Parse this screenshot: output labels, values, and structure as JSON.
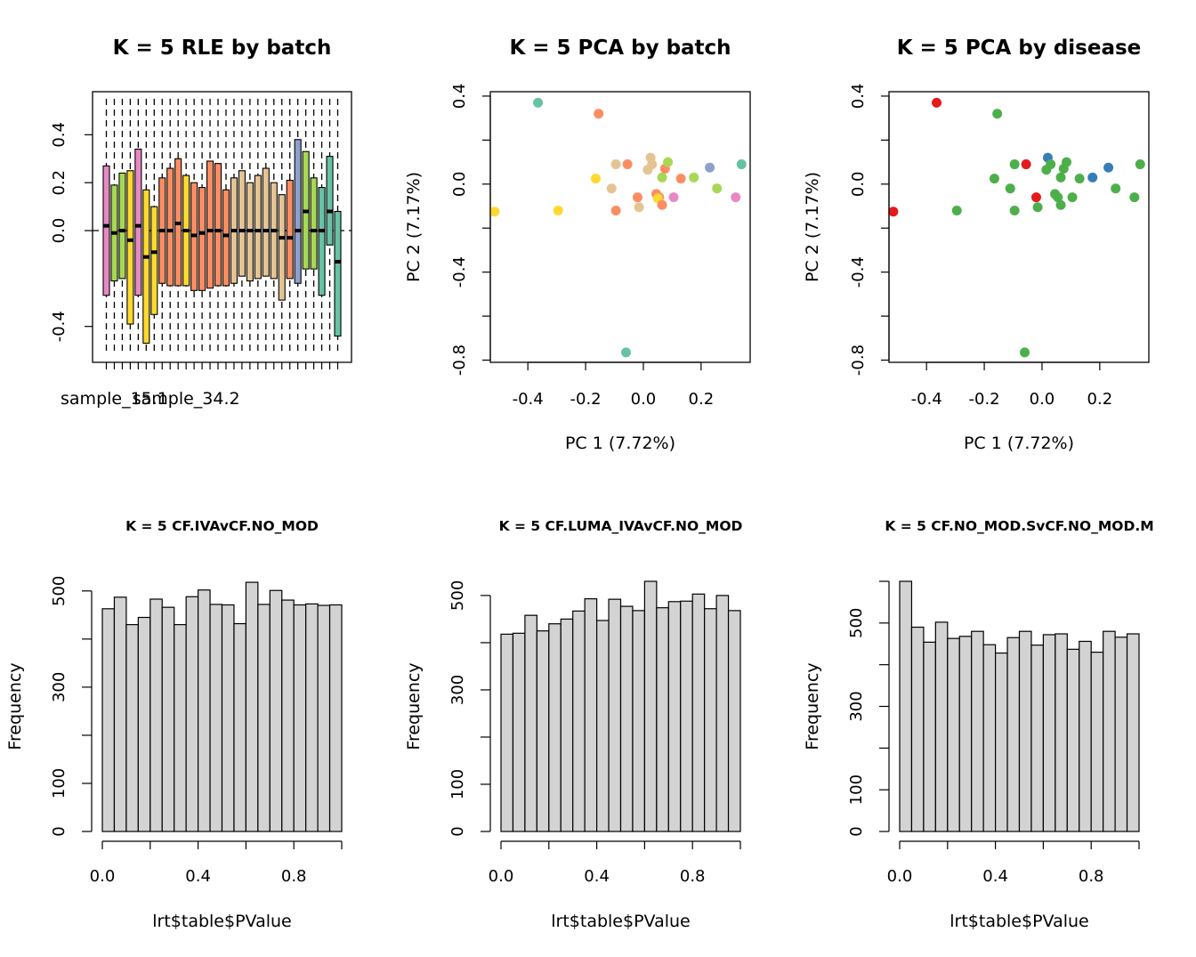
{
  "chart_data": [
    {
      "type": "boxplot",
      "title": "K = 5 RLE by batch",
      "xlabel": "",
      "ylabel": "",
      "ylim": [
        -0.52,
        0.55
      ],
      "yticks": [
        -0.4,
        0.0,
        0.2,
        0.4
      ],
      "xtick_labels": [
        {
          "index": 1,
          "label": "sample_15.1"
        },
        {
          "index": 10,
          "label": "sample_34.2"
        }
      ],
      "reference_line": 0,
      "boxes": [
        {
          "q1": -0.27,
          "median": 0.02,
          "q3": 0.27,
          "wmin": -0.52,
          "wmax": 0.55,
          "color": "#e78ac3"
        },
        {
          "q1": -0.21,
          "median": -0.01,
          "q3": 0.19,
          "wmin": -0.52,
          "wmax": 0.55,
          "color": "#a6d854"
        },
        {
          "q1": -0.2,
          "median": 0.0,
          "q3": 0.24,
          "wmin": -0.52,
          "wmax": 0.55,
          "color": "#a6d854"
        },
        {
          "q1": -0.39,
          "median": -0.04,
          "q3": 0.25,
          "wmin": -0.52,
          "wmax": 0.55,
          "color": "#ffd92f"
        },
        {
          "q1": -0.27,
          "median": 0.02,
          "q3": 0.34,
          "wmin": -0.52,
          "wmax": 0.55,
          "color": "#e78ac3"
        },
        {
          "q1": -0.47,
          "median": -0.11,
          "q3": 0.17,
          "wmin": -0.52,
          "wmax": 0.55,
          "color": "#ffd92f"
        },
        {
          "q1": -0.35,
          "median": -0.09,
          "q3": 0.1,
          "wmin": -0.52,
          "wmax": 0.55,
          "color": "#ffd92f"
        },
        {
          "q1": -0.22,
          "median": 0.0,
          "q3": 0.22,
          "wmin": -0.52,
          "wmax": 0.55,
          "color": "#fc8d62"
        },
        {
          "q1": -0.23,
          "median": 0.0,
          "q3": 0.26,
          "wmin": -0.52,
          "wmax": 0.55,
          "color": "#fc8d62"
        },
        {
          "q1": -0.23,
          "median": 0.03,
          "q3": 0.3,
          "wmin": -0.52,
          "wmax": 0.55,
          "color": "#fc8d62"
        },
        {
          "q1": -0.23,
          "median": 0.0,
          "q3": 0.23,
          "wmin": -0.52,
          "wmax": 0.55,
          "color": "#ffd92f"
        },
        {
          "q1": -0.25,
          "median": -0.02,
          "q3": 0.2,
          "wmin": -0.52,
          "wmax": 0.55,
          "color": "#fc8d62"
        },
        {
          "q1": -0.25,
          "median": -0.01,
          "q3": 0.18,
          "wmin": -0.52,
          "wmax": 0.55,
          "color": "#fc8d62"
        },
        {
          "q1": -0.24,
          "median": 0.0,
          "q3": 0.29,
          "wmin": -0.52,
          "wmax": 0.55,
          "color": "#fc8d62"
        },
        {
          "q1": -0.23,
          "median": 0.0,
          "q3": 0.28,
          "wmin": -0.52,
          "wmax": 0.55,
          "color": "#fc8d62"
        },
        {
          "q1": -0.23,
          "median": -0.02,
          "q3": 0.17,
          "wmin": -0.52,
          "wmax": 0.55,
          "color": "#fc8d62"
        },
        {
          "q1": -0.22,
          "median": 0.0,
          "q3": 0.22,
          "wmin": -0.52,
          "wmax": 0.55,
          "color": "#e5c494"
        },
        {
          "q1": -0.19,
          "median": 0.0,
          "q3": 0.25,
          "wmin": -0.52,
          "wmax": 0.55,
          "color": "#e5c494"
        },
        {
          "q1": -0.21,
          "median": 0.0,
          "q3": 0.2,
          "wmin": -0.52,
          "wmax": 0.55,
          "color": "#e5c494"
        },
        {
          "q1": -0.2,
          "median": 0.0,
          "q3": 0.23,
          "wmin": -0.52,
          "wmax": 0.55,
          "color": "#e5c494"
        },
        {
          "q1": -0.19,
          "median": 0.0,
          "q3": 0.26,
          "wmin": -0.52,
          "wmax": 0.55,
          "color": "#e5c494"
        },
        {
          "q1": -0.2,
          "median": 0.0,
          "q3": 0.2,
          "wmin": -0.52,
          "wmax": 0.55,
          "color": "#e5c494"
        },
        {
          "q1": -0.29,
          "median": -0.03,
          "q3": 0.15,
          "wmin": -0.52,
          "wmax": 0.55,
          "color": "#e5c494"
        },
        {
          "q1": -0.2,
          "median": -0.03,
          "q3": 0.21,
          "wmin": -0.52,
          "wmax": 0.55,
          "color": "#fc8d62"
        },
        {
          "q1": -0.22,
          "median": 0.0,
          "q3": 0.38,
          "wmin": -0.52,
          "wmax": 0.55,
          "color": "#8da0cb"
        },
        {
          "q1": -0.16,
          "median": 0.08,
          "q3": 0.33,
          "wmin": -0.52,
          "wmax": 0.55,
          "color": "#a6d854"
        },
        {
          "q1": -0.16,
          "median": 0.0,
          "q3": 0.22,
          "wmin": -0.52,
          "wmax": 0.55,
          "color": "#a6d854"
        },
        {
          "q1": -0.27,
          "median": 0.0,
          "q3": 0.18,
          "wmin": -0.52,
          "wmax": 0.55,
          "color": "#66c2a5"
        },
        {
          "q1": -0.06,
          "median": 0.08,
          "q3": 0.31,
          "wmin": -0.52,
          "wmax": 0.55,
          "color": "#66c2a5"
        },
        {
          "q1": -0.44,
          "median": -0.13,
          "q3": 0.08,
          "wmin": -0.52,
          "wmax": 0.55,
          "color": "#66c2a5"
        }
      ]
    },
    {
      "type": "scatter",
      "title": "K = 5 PCA by batch",
      "xlabel": "PC 1 (7.72%)",
      "ylabel": "PC 2 (7.17%)",
      "xlim": [
        -0.53,
        0.37
      ],
      "ylim": [
        -0.81,
        0.42
      ],
      "xticks": [
        -0.4,
        -0.2,
        0.0,
        0.2
      ],
      "yticks": [
        -0.8,
        -0.4,
        0.0,
        0.4
      ],
      "points": [
        {
          "x": -0.365,
          "y": 0.37,
          "color": "#66c2a5"
        },
        {
          "x": -0.155,
          "y": 0.32,
          "color": "#fc8d62"
        },
        {
          "x": -0.165,
          "y": 0.025,
          "color": "#ffd92f"
        },
        {
          "x": -0.515,
          "y": -0.125,
          "color": "#ffd92f"
        },
        {
          "x": -0.295,
          "y": -0.12,
          "color": "#ffd92f"
        },
        {
          "x": -0.095,
          "y": 0.09,
          "color": "#e5c494"
        },
        {
          "x": -0.055,
          "y": 0.09,
          "color": "#fc8d62"
        },
        {
          "x": -0.11,
          "y": -0.02,
          "color": "#e5c494"
        },
        {
          "x": -0.095,
          "y": -0.12,
          "color": "#fc8d62"
        },
        {
          "x": -0.02,
          "y": -0.06,
          "color": "#fc8d62"
        },
        {
          "x": -0.015,
          "y": -0.105,
          "color": "#e5c494"
        },
        {
          "x": 0.015,
          "y": 0.065,
          "color": "#e5c494"
        },
        {
          "x": 0.025,
          "y": 0.12,
          "color": "#e5c494"
        },
        {
          "x": 0.03,
          "y": 0.09,
          "color": "#e5c494"
        },
        {
          "x": 0.045,
          "y": -0.045,
          "color": "#fc8d62"
        },
        {
          "x": 0.055,
          "y": -0.06,
          "color": "#fc8d62"
        },
        {
          "x": 0.05,
          "y": -0.065,
          "color": "#ffd92f"
        },
        {
          "x": 0.065,
          "y": -0.095,
          "color": "#fc8d62"
        },
        {
          "x": 0.065,
          "y": 0.03,
          "color": "#a6d854"
        },
        {
          "x": 0.075,
          "y": 0.07,
          "color": "#fc8d62"
        },
        {
          "x": 0.085,
          "y": 0.1,
          "color": "#a6d854"
        },
        {
          "x": 0.105,
          "y": -0.06,
          "color": "#e78ac3"
        },
        {
          "x": 0.13,
          "y": 0.025,
          "color": "#fc8d62"
        },
        {
          "x": 0.175,
          "y": 0.03,
          "color": "#a6d854"
        },
        {
          "x": 0.23,
          "y": 0.075,
          "color": "#8da0cb"
        },
        {
          "x": 0.255,
          "y": -0.02,
          "color": "#a6d854"
        },
        {
          "x": 0.32,
          "y": -0.06,
          "color": "#e78ac3"
        },
        {
          "x": 0.34,
          "y": 0.09,
          "color": "#66c2a5"
        },
        {
          "x": -0.06,
          "y": -0.765,
          "color": "#66c2a5"
        }
      ]
    },
    {
      "type": "scatter",
      "title": "K = 5 PCA by disease",
      "xlabel": "PC 1 (7.72%)",
      "ylabel": "PC 2 (7.17%)",
      "xlim": [
        -0.53,
        0.37
      ],
      "ylim": [
        -0.81,
        0.42
      ],
      "xticks": [
        -0.4,
        -0.2,
        0.0,
        0.2
      ],
      "yticks": [
        -0.8,
        -0.4,
        0.0,
        0.4
      ],
      "points": [
        {
          "x": -0.365,
          "y": 0.37,
          "color": "#e41a1c"
        },
        {
          "x": -0.155,
          "y": 0.32,
          "color": "#4daf4a"
        },
        {
          "x": -0.165,
          "y": 0.025,
          "color": "#4daf4a"
        },
        {
          "x": -0.515,
          "y": -0.125,
          "color": "#e41a1c"
        },
        {
          "x": -0.295,
          "y": -0.12,
          "color": "#4daf4a"
        },
        {
          "x": -0.095,
          "y": 0.09,
          "color": "#4daf4a"
        },
        {
          "x": -0.055,
          "y": 0.09,
          "color": "#e41a1c"
        },
        {
          "x": -0.11,
          "y": -0.02,
          "color": "#4daf4a"
        },
        {
          "x": -0.095,
          "y": -0.12,
          "color": "#4daf4a"
        },
        {
          "x": -0.02,
          "y": -0.06,
          "color": "#e41a1c"
        },
        {
          "x": -0.015,
          "y": -0.105,
          "color": "#4daf4a"
        },
        {
          "x": 0.015,
          "y": 0.065,
          "color": "#4daf4a"
        },
        {
          "x": 0.02,
          "y": 0.12,
          "color": "#377eb8"
        },
        {
          "x": 0.03,
          "y": 0.09,
          "color": "#4daf4a"
        },
        {
          "x": 0.045,
          "y": -0.045,
          "color": "#4daf4a"
        },
        {
          "x": 0.055,
          "y": -0.06,
          "color": "#4daf4a"
        },
        {
          "x": 0.065,
          "y": -0.095,
          "color": "#4daf4a"
        },
        {
          "x": 0.065,
          "y": 0.03,
          "color": "#4daf4a"
        },
        {
          "x": 0.075,
          "y": 0.07,
          "color": "#4daf4a"
        },
        {
          "x": 0.085,
          "y": 0.1,
          "color": "#4daf4a"
        },
        {
          "x": 0.105,
          "y": -0.06,
          "color": "#4daf4a"
        },
        {
          "x": 0.13,
          "y": 0.025,
          "color": "#4daf4a"
        },
        {
          "x": 0.175,
          "y": 0.03,
          "color": "#377eb8"
        },
        {
          "x": 0.23,
          "y": 0.075,
          "color": "#377eb8"
        },
        {
          "x": 0.255,
          "y": -0.02,
          "color": "#4daf4a"
        },
        {
          "x": 0.32,
          "y": -0.06,
          "color": "#4daf4a"
        },
        {
          "x": 0.34,
          "y": 0.09,
          "color": "#4daf4a"
        },
        {
          "x": -0.06,
          "y": -0.765,
          "color": "#4daf4a"
        }
      ]
    },
    {
      "type": "histogram",
      "title": "K = 5 CF.IVAvCF.NO_MOD",
      "xlabel": "lrt$table$PValue",
      "ylabel": "Frequency",
      "xlim": [
        0,
        1
      ],
      "ylim": [
        0,
        520
      ],
      "xticks": [
        0.0,
        0.2,
        0.4,
        0.6,
        0.8,
        1.0
      ],
      "xtick_labels": [
        "0.0",
        "0.4",
        "0.8"
      ],
      "yticks": [
        0,
        100,
        200,
        300,
        400,
        500
      ],
      "ytick_labels": [
        "0",
        "100",
        "300",
        "500"
      ],
      "bin_width": 0.05,
      "values": [
        463,
        487,
        430,
        445,
        483,
        466,
        430,
        488,
        502,
        472,
        471,
        432,
        518,
        472,
        501,
        481,
        471,
        473,
        470,
        471
      ],
      "bar_color": "#d3d3d3"
    },
    {
      "type": "histogram",
      "title": "K = 5 CF.LUMA_IVAvCF.NO_MOD",
      "xlabel": "lrt$table$PValue",
      "ylabel": "Frequency",
      "xlim": [
        0,
        1
      ],
      "ylim": [
        0,
        530
      ],
      "xticks": [
        0.0,
        0.2,
        0.4,
        0.6,
        0.8,
        1.0
      ],
      "xtick_labels": [
        "0.0",
        "0.4",
        "0.8"
      ],
      "yticks": [
        0,
        100,
        200,
        300,
        400,
        500
      ],
      "ytick_labels": [
        "0",
        "100",
        "300",
        "500"
      ],
      "bin_width": 0.05,
      "values": [
        418,
        420,
        458,
        425,
        440,
        450,
        467,
        493,
        447,
        492,
        477,
        468,
        530,
        474,
        487,
        488,
        503,
        472,
        500,
        468
      ],
      "bar_color": "#d3d3d3"
    },
    {
      "type": "histogram",
      "title": "K = 5 CF.NO_MOD.SvCF.NO_MOD.M",
      "xlabel": "lrt$table$PValue",
      "ylabel": "Frequency",
      "xlim": [
        0,
        1
      ],
      "ylim": [
        0,
        600
      ],
      "xticks": [
        0.0,
        0.2,
        0.4,
        0.6,
        0.8,
        1.0
      ],
      "xtick_labels": [
        "0.0",
        "0.4",
        "0.8"
      ],
      "yticks": [
        0,
        100,
        200,
        300,
        400,
        500,
        600
      ],
      "ytick_labels": [
        "0",
        "100",
        "300",
        "500"
      ],
      "bin_width": 0.05,
      "values": [
        600,
        490,
        454,
        502,
        463,
        468,
        480,
        448,
        428,
        465,
        480,
        447,
        472,
        474,
        437,
        456,
        430,
        480,
        466,
        474
      ],
      "bar_color": "#d3d3d3"
    }
  ]
}
